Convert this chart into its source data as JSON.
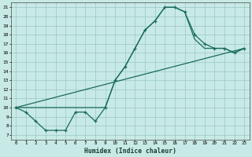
{
  "xlabel": "Humidex (Indice chaleur)",
  "bg_color": "#c8eae6",
  "grid_color": "#a0cccc",
  "line_color": "#1a6b5a",
  "xlim": [
    -0.5,
    23.5
  ],
  "ylim": [
    6.5,
    21.5
  ],
  "xticks": [
    0,
    1,
    2,
    3,
    4,
    5,
    6,
    7,
    8,
    9,
    10,
    11,
    12,
    13,
    14,
    15,
    16,
    17,
    18,
    19,
    20,
    21,
    22,
    23
  ],
  "yticks": [
    7,
    8,
    9,
    10,
    11,
    12,
    13,
    14,
    15,
    16,
    17,
    18,
    19,
    20,
    21
  ],
  "marked_line_x": [
    0,
    1,
    2,
    3,
    4,
    5,
    6,
    7,
    8,
    9,
    10,
    11,
    12,
    13,
    14,
    15,
    16,
    17,
    18,
    19,
    20,
    21,
    22,
    23
  ],
  "marked_line_y": [
    10,
    9.5,
    8.5,
    7.5,
    7.5,
    7.5,
    9.5,
    9.5,
    8.5,
    10,
    13,
    14.5,
    16.5,
    18.5,
    19.5,
    21,
    21,
    20.5,
    18,
    17,
    16.5,
    16.5,
    16,
    16.5
  ],
  "smooth_line1_x": [
    0,
    9,
    10,
    11,
    12,
    13,
    14,
    15,
    16,
    17,
    18,
    19,
    20,
    21,
    22,
    23
  ],
  "smooth_line1_y": [
    10,
    10,
    13,
    14.5,
    16.5,
    18.5,
    19.5,
    21,
    21,
    20.5,
    17.5,
    16.5,
    16.5,
    16.5,
    16,
    16.5
  ],
  "diag_line_x": [
    0,
    23
  ],
  "diag_line_y": [
    10,
    16.5
  ]
}
